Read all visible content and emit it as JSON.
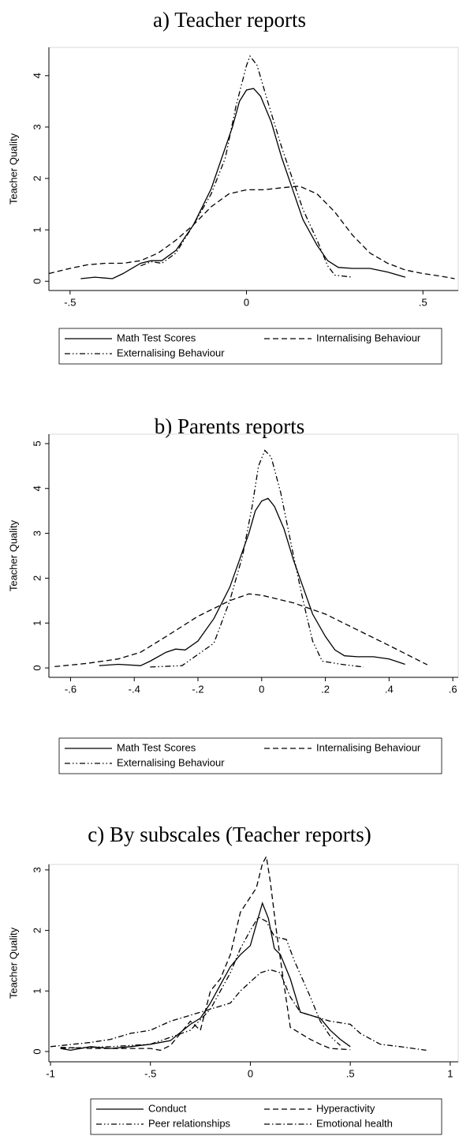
{
  "chart_data": [
    {
      "type": "line",
      "title": "a) Teacher reports",
      "ylabel": "Teacher Quality",
      "xlim": [
        -0.56,
        0.6
      ],
      "ylim": [
        -0.18,
        4.55
      ],
      "xticks": [
        {
          "value": -0.5,
          "label": "-.5"
        },
        0,
        {
          "value": 0.5,
          "label": ".5"
        }
      ],
      "yticks": [
        0,
        1,
        2,
        3,
        4
      ],
      "grid": false,
      "series": [
        {
          "name": "Math Test Scores",
          "color": "#000000",
          "dash": "solid",
          "x": [
            -0.47,
            -0.43,
            -0.38,
            -0.35,
            -0.3,
            -0.27,
            -0.24,
            -0.2,
            -0.15,
            -0.1,
            -0.07,
            -0.04,
            -0.02,
            0,
            0.02,
            0.04,
            0.07,
            0.1,
            0.13,
            0.16,
            0.2,
            0.23,
            0.26,
            0.3,
            0.35,
            0.4,
            0.45
          ],
          "values": [
            0.05,
            0.08,
            0.05,
            0.15,
            0.35,
            0.4,
            0.4,
            0.6,
            1.1,
            1.8,
            2.4,
            3.0,
            3.5,
            3.72,
            3.75,
            3.6,
            3.1,
            2.4,
            1.8,
            1.2,
            0.7,
            0.4,
            0.27,
            0.25,
            0.25,
            0.18,
            0.08
          ]
        },
        {
          "name": "Internalising Behaviour",
          "color": "#000000",
          "dash": "dash",
          "x": [
            -0.56,
            -0.5,
            -0.45,
            -0.4,
            -0.35,
            -0.3,
            -0.25,
            -0.2,
            -0.15,
            -0.1,
            -0.05,
            0,
            0.05,
            0.1,
            0.15,
            0.2,
            0.25,
            0.3,
            0.35,
            0.4,
            0.45,
            0.5,
            0.55,
            0.59
          ],
          "values": [
            0.15,
            0.25,
            0.32,
            0.35,
            0.35,
            0.4,
            0.55,
            0.8,
            1.1,
            1.45,
            1.7,
            1.78,
            1.78,
            1.82,
            1.85,
            1.7,
            1.35,
            0.9,
            0.55,
            0.35,
            0.22,
            0.15,
            0.1,
            0.05
          ]
        },
        {
          "name": "Externalising Behaviour",
          "color": "#000000",
          "dash": "dash-dot-dot",
          "x": [
            -0.3,
            -0.27,
            -0.24,
            -0.2,
            -0.15,
            -0.1,
            -0.06,
            -0.03,
            0,
            0.01,
            0.03,
            0.06,
            0.1,
            0.13,
            0.16,
            0.2,
            0.23,
            0.25,
            0.3
          ],
          "values": [
            0.3,
            0.38,
            0.35,
            0.55,
            1.1,
            1.7,
            2.4,
            3.4,
            4.2,
            4.38,
            4.2,
            3.5,
            2.6,
            2.0,
            1.4,
            0.8,
            0.3,
            0.12,
            0.08
          ]
        }
      ]
    },
    {
      "type": "line",
      "title": "b) Parents reports",
      "ylabel": "Teacher Quality",
      "xlim": [
        -0.668,
        0.617
      ],
      "ylim": [
        -0.21,
        5.21
      ],
      "xticks": [
        {
          "value": -0.6,
          "label": "-.6"
        },
        {
          "value": -0.4,
          "label": "-.4"
        },
        {
          "value": -0.2,
          "label": "-.2"
        },
        0,
        {
          "value": 0.2,
          "label": ".2"
        },
        {
          "value": 0.4,
          "label": ".4"
        },
        {
          "value": 0.6,
          "label": ".6"
        }
      ],
      "yticks": [
        0,
        1,
        2,
        3,
        4,
        5
      ],
      "grid": false,
      "series": [
        {
          "name": "Math Test Scores",
          "color": "#000000",
          "dash": "solid",
          "x": [
            -0.51,
            -0.45,
            -0.38,
            -0.35,
            -0.3,
            -0.27,
            -0.24,
            -0.2,
            -0.15,
            -0.1,
            -0.07,
            -0.04,
            -0.02,
            0,
            0.02,
            0.04,
            0.07,
            0.1,
            0.13,
            0.16,
            0.2,
            0.23,
            0.26,
            0.3,
            0.35,
            0.4,
            0.45
          ],
          "values": [
            0.05,
            0.08,
            0.05,
            0.15,
            0.35,
            0.42,
            0.4,
            0.6,
            1.1,
            1.8,
            2.4,
            3.0,
            3.5,
            3.72,
            3.78,
            3.6,
            3.1,
            2.4,
            1.8,
            1.2,
            0.7,
            0.4,
            0.27,
            0.25,
            0.25,
            0.2,
            0.08
          ]
        },
        {
          "name": "Internalising Behaviour",
          "color": "#000000",
          "dash": "dash",
          "x": [
            -0.65,
            -0.55,
            -0.45,
            -0.38,
            -0.3,
            -0.2,
            -0.1,
            -0.04,
            0,
            0.1,
            0.2,
            0.3,
            0.4,
            0.47,
            0.52
          ],
          "values": [
            0.03,
            0.1,
            0.2,
            0.35,
            0.7,
            1.15,
            1.5,
            1.65,
            1.62,
            1.45,
            1.2,
            0.85,
            0.5,
            0.25,
            0.07
          ]
        },
        {
          "name": "Externalising Behaviour",
          "color": "#000000",
          "dash": "dash-dot-dot",
          "x": [
            -0.35,
            -0.25,
            -0.2,
            -0.15,
            -0.1,
            -0.06,
            -0.03,
            -0.01,
            0.01,
            0.03,
            0.06,
            0.1,
            0.13,
            0.16,
            0.19,
            0.25,
            0.32
          ],
          "values": [
            0.02,
            0.05,
            0.3,
            0.55,
            1.5,
            2.5,
            3.6,
            4.5,
            4.85,
            4.7,
            3.9,
            2.5,
            1.5,
            0.6,
            0.15,
            0.08,
            0.02
          ]
        }
      ]
    },
    {
      "type": "line",
      "title": "c) By subscales (Teacher reports)",
      "ylabel": "Teacher Quality",
      "xlim": [
        -1.008,
        1.04
      ],
      "ylim": [
        -0.17,
        3.09
      ],
      "xticks": [
        -1,
        {
          "value": -0.5,
          "label": "-.5"
        },
        0,
        {
          "value": 0.5,
          "label": ".5"
        },
        1
      ],
      "yticks": [
        0,
        1,
        2,
        3
      ],
      "grid": false,
      "series": [
        {
          "name": "Conduct",
          "color": "#000000",
          "dash": "solid",
          "x": [
            -0.95,
            -0.9,
            -0.8,
            -0.7,
            -0.6,
            -0.5,
            -0.4,
            -0.3,
            -0.25,
            -0.2,
            -0.15,
            -0.1,
            -0.05,
            0,
            0.03,
            0.06,
            0.09,
            0.12,
            0.15,
            0.2,
            0.25,
            0.3,
            0.35,
            0.4,
            0.45,
            0.5
          ],
          "values": [
            0.05,
            0.02,
            0.08,
            0.05,
            0.08,
            0.12,
            0.18,
            0.45,
            0.55,
            0.8,
            1.1,
            1.4,
            1.6,
            1.75,
            2.1,
            2.45,
            2.2,
            1.7,
            1.6,
            1.2,
            0.65,
            0.6,
            0.55,
            0.35,
            0.2,
            0.08
          ]
        },
        {
          "name": "Hyperactivity",
          "color": "#000000",
          "dash": "dash",
          "x": [
            -0.95,
            -0.8,
            -0.6,
            -0.5,
            -0.45,
            -0.4,
            -0.3,
            -0.25,
            -0.2,
            -0.15,
            -0.1,
            -0.05,
            0,
            0.03,
            0.06,
            0.08,
            0.1,
            0.13,
            0.16,
            0.2,
            0.25,
            0.3,
            0.35,
            0.4,
            0.5
          ],
          "values": [
            0.07,
            0.05,
            0.05,
            0.05,
            0.02,
            0.1,
            0.5,
            0.35,
            1.0,
            1.2,
            1.6,
            2.3,
            2.55,
            2.7,
            3.1,
            3.22,
            2.8,
            2.0,
            1.3,
            0.4,
            0.3,
            0.2,
            0.12,
            0.05,
            0.03
          ]
        },
        {
          "name": "Peer relationships",
          "color": "#000000",
          "dash": "dash-dot-dot",
          "x": [
            -0.95,
            -0.7,
            -0.5,
            -0.3,
            -0.2,
            -0.1,
            -0.05,
            0,
            0.04,
            0.08,
            0.12,
            0.18,
            0.22,
            0.3,
            0.35,
            0.4,
            0.45
          ],
          "values": [
            0.05,
            0.08,
            0.12,
            0.35,
            0.7,
            1.3,
            1.7,
            2.0,
            2.22,
            2.15,
            1.9,
            1.85,
            1.5,
            0.9,
            0.5,
            0.25,
            0.1
          ]
        },
        {
          "name": "Emotional health",
          "color": "#000000",
          "dash": "dash-dot",
          "x": [
            -1.0,
            -0.8,
            -0.7,
            -0.6,
            -0.5,
            -0.4,
            -0.3,
            -0.2,
            -0.1,
            -0.05,
            0,
            0.05,
            0.1,
            0.15,
            0.2,
            0.25,
            0.3,
            0.4,
            0.5,
            0.55,
            0.65,
            0.75,
            0.88
          ],
          "values": [
            0.08,
            0.15,
            0.2,
            0.3,
            0.35,
            0.5,
            0.6,
            0.7,
            0.8,
            1.0,
            1.15,
            1.3,
            1.35,
            1.3,
            0.9,
            0.65,
            0.6,
            0.5,
            0.45,
            0.3,
            0.12,
            0.08,
            0.02
          ]
        }
      ]
    }
  ]
}
